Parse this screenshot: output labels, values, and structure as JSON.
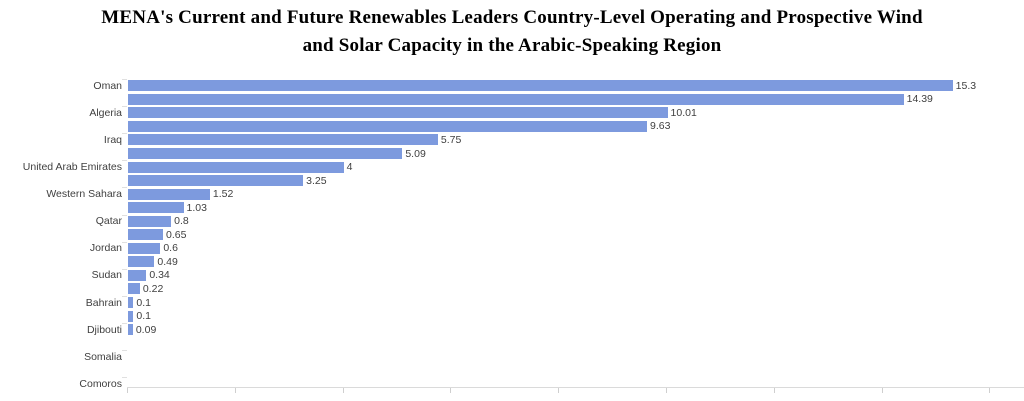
{
  "title": {
    "line1": "MENA's Current and Future Renewables Leaders Country-Level Operating and Prospective Wind",
    "line2": "and Solar Capacity in the Arabic-Speaking Region"
  },
  "chart_data": {
    "type": "bar",
    "orientation": "horizontal",
    "title": "MENA's Current and Future Renewables Leaders Country-Level Operating and Prospective Wind and Solar Capacity in the Arabic-Speaking Region",
    "categories": [
      "Oman",
      "Algeria",
      "Iraq",
      "United Arab Emirates",
      "Western Sahara",
      "Qatar",
      "Jordan",
      "Sudan",
      "Bahrain",
      "Djibouti",
      "Somalia",
      "Comoros"
    ],
    "series": [
      {
        "name": "upper-bar",
        "values": [
          15.3,
          10.01,
          5.75,
          4,
          1.52,
          0.8,
          0.6,
          0.34,
          0.1,
          0.09,
          0,
          0
        ],
        "labels": [
          "15.3",
          "10.01",
          "5.75",
          "4",
          "1.52",
          "0.8",
          "0.6",
          "0.34",
          "0.1",
          "0.09",
          "",
          ""
        ]
      },
      {
        "name": "lower-bar",
        "values": [
          14.39,
          9.63,
          5.09,
          3.25,
          1.03,
          0.65,
          0.49,
          0.22,
          0.1,
          0,
          0,
          0
        ],
        "labels": [
          "14.39",
          "9.63",
          "5.09",
          "3.25",
          "1.03",
          "0.65",
          "0.49",
          "0.22",
          "0.1",
          "",
          "",
          ""
        ]
      }
    ],
    "xlim": [
      0,
      16.5
    ],
    "x_ticks": [
      0,
      2,
      4,
      6,
      8,
      10,
      12,
      14,
      16
    ],
    "x_tick_labels_visible": false,
    "legend": "none",
    "grid": "none",
    "value_labels_visible": true,
    "colors": {
      "bar": "#7d9ade",
      "value_text": "#3f3f3f",
      "category_text": "#3f3f3f",
      "axis_line": "#dadada",
      "tick": "#cfcfcf",
      "background": "#ffffff"
    }
  }
}
